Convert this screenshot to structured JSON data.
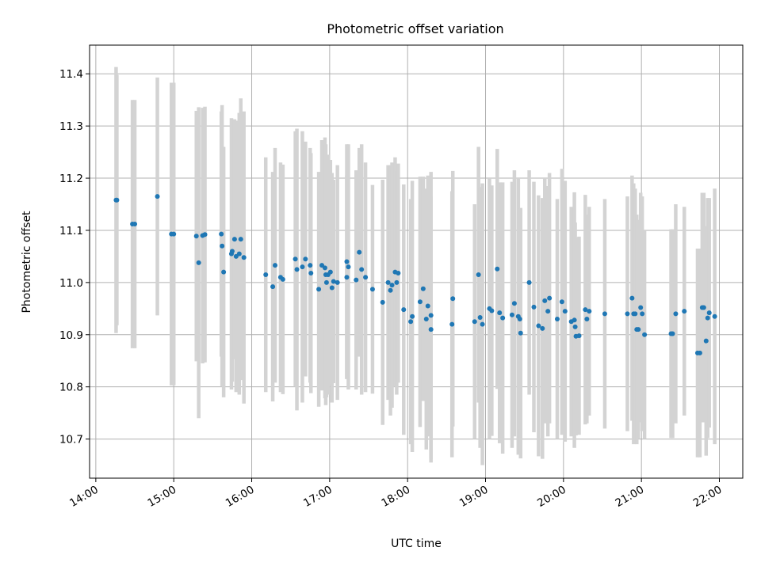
{
  "chart_data": {
    "type": "scatter",
    "title": "Photometric offset variation",
    "xlabel": "UTC time",
    "ylabel": "Photometric offset",
    "x_unit": "hours UTC",
    "xlim": [
      13.92,
      22.3
    ],
    "ylim": [
      10.625,
      11.455
    ],
    "x_ticks": [
      {
        "value": 14,
        "label": "14:00"
      },
      {
        "value": 15,
        "label": "15:00"
      },
      {
        "value": 16,
        "label": "16:00"
      },
      {
        "value": 17,
        "label": "17:00"
      },
      {
        "value": 18,
        "label": "18:00"
      },
      {
        "value": 19,
        "label": "19:00"
      },
      {
        "value": 20,
        "label": "20:00"
      },
      {
        "value": 21,
        "label": "21:00"
      },
      {
        "value": 22,
        "label": "22:00"
      }
    ],
    "y_ticks": [
      {
        "value": 10.7,
        "label": "10.7"
      },
      {
        "value": 10.8,
        "label": "10.8"
      },
      {
        "value": 10.9,
        "label": "10.9"
      },
      {
        "value": 11.0,
        "label": "11.0"
      },
      {
        "value": 11.1,
        "label": "11.1"
      },
      {
        "value": 11.2,
        "label": "11.2"
      },
      {
        "value": 11.3,
        "label": "11.3"
      },
      {
        "value": 11.4,
        "label": "11.4"
      }
    ],
    "grid": true,
    "marker_color": "#1f77b4",
    "errorbar_color": "#d3d3d3",
    "points": [
      [
        14.26,
        11.158,
        0.255
      ],
      [
        14.27,
        11.158,
        0.24
      ],
      [
        14.47,
        11.112,
        0.238
      ],
      [
        14.5,
        11.112,
        0.238
      ],
      [
        14.79,
        11.165,
        0.228
      ],
      [
        14.97,
        11.093,
        0.29
      ],
      [
        15.0,
        11.093,
        0.29
      ],
      [
        15.29,
        11.089,
        0.24
      ],
      [
        15.32,
        11.038,
        0.298
      ],
      [
        15.37,
        11.09,
        0.245
      ],
      [
        15.4,
        11.092,
        0.245
      ],
      [
        15.61,
        11.093,
        0.235
      ],
      [
        15.62,
        11.07,
        0.27
      ],
      [
        15.64,
        11.02,
        0.24
      ],
      [
        15.74,
        11.055,
        0.26
      ],
      [
        15.75,
        11.06,
        0.25
      ],
      [
        15.78,
        11.083,
        0.23
      ],
      [
        15.8,
        11.05,
        0.26
      ],
      [
        15.84,
        11.055,
        0.27
      ],
      [
        15.86,
        11.083,
        0.27
      ],
      [
        15.9,
        11.048,
        0.28
      ],
      [
        16.18,
        11.015,
        0.225
      ],
      [
        16.27,
        10.992,
        0.22
      ],
      [
        16.3,
        11.033,
        0.225
      ],
      [
        16.37,
        11.01,
        0.22
      ],
      [
        16.4,
        11.006,
        0.22
      ],
      [
        16.56,
        11.045,
        0.245
      ],
      [
        16.58,
        11.025,
        0.27
      ],
      [
        16.65,
        11.03,
        0.26
      ],
      [
        16.69,
        11.045,
        0.225
      ],
      [
        16.75,
        11.033,
        0.225
      ],
      [
        16.76,
        11.018,
        0.23
      ],
      [
        16.86,
        10.987,
        0.225
      ],
      [
        16.9,
        11.033,
        0.24
      ],
      [
        16.94,
        11.028,
        0.25
      ],
      [
        16.95,
        11.015,
        0.25
      ],
      [
        16.96,
        11.0,
        0.22
      ],
      [
        16.98,
        11.015,
        0.23
      ],
      [
        17.01,
        11.02,
        0.215
      ],
      [
        17.03,
        10.99,
        0.22
      ],
      [
        17.05,
        11.002,
        0.195
      ],
      [
        17.1,
        11.0,
        0.225
      ],
      [
        17.22,
        11.04,
        0.225
      ],
      [
        17.24,
        11.03,
        0.235
      ],
      [
        17.22,
        11.01,
        0.195
      ],
      [
        17.34,
        11.005,
        0.21
      ],
      [
        17.38,
        11.058,
        0.2
      ],
      [
        17.41,
        11.025,
        0.24
      ],
      [
        17.46,
        11.01,
        0.22
      ],
      [
        17.55,
        10.987,
        0.2
      ],
      [
        17.68,
        10.962,
        0.235
      ],
      [
        17.75,
        11.0,
        0.225
      ],
      [
        17.78,
        10.985,
        0.24
      ],
      [
        17.8,
        10.995,
        0.235
      ],
      [
        17.84,
        11.02,
        0.22
      ],
      [
        17.86,
        11.0,
        0.215
      ],
      [
        17.88,
        11.018,
        0.21
      ],
      [
        17.95,
        10.948,
        0.24
      ],
      [
        18.04,
        10.925,
        0.235
      ],
      [
        18.06,
        10.935,
        0.26
      ],
      [
        18.16,
        10.963,
        0.24
      ],
      [
        18.2,
        10.988,
        0.215
      ],
      [
        18.24,
        10.93,
        0.25
      ],
      [
        18.26,
        10.955,
        0.25
      ],
      [
        18.3,
        10.91,
        0.255
      ],
      [
        18.3,
        10.937,
        0.275
      ],
      [
        18.58,
        10.969,
        0.245
      ],
      [
        18.57,
        10.92,
        0.255
      ],
      [
        18.86,
        10.925,
        0.225
      ],
      [
        18.91,
        11.015,
        0.245
      ],
      [
        18.93,
        10.933,
        0.25
      ],
      [
        18.96,
        10.92,
        0.27
      ],
      [
        19.05,
        10.95,
        0.25
      ],
      [
        19.08,
        10.946,
        0.24
      ],
      [
        19.15,
        11.026,
        0.23
      ],
      [
        19.18,
        10.942,
        0.25
      ],
      [
        19.22,
        10.932,
        0.26
      ],
      [
        19.34,
        10.938,
        0.255
      ],
      [
        19.37,
        10.96,
        0.255
      ],
      [
        19.42,
        10.935,
        0.265
      ],
      [
        19.45,
        10.903,
        0.24
      ],
      [
        19.44,
        10.93,
        0.21
      ],
      [
        19.56,
        11.0,
        0.215
      ],
      [
        19.62,
        10.953,
        0.24
      ],
      [
        19.68,
        10.917,
        0.25
      ],
      [
        19.73,
        10.912,
        0.25
      ],
      [
        19.76,
        10.965,
        0.235
      ],
      [
        19.8,
        10.945,
        0.24
      ],
      [
        19.82,
        10.97,
        0.24
      ],
      [
        19.92,
        10.93,
        0.23
      ],
      [
        19.98,
        10.963,
        0.255
      ],
      [
        20.02,
        10.945,
        0.25
      ],
      [
        20.1,
        10.925,
        0.22
      ],
      [
        20.14,
        10.928,
        0.245
      ],
      [
        20.15,
        10.915,
        0.2
      ],
      [
        20.16,
        10.897,
        0.19
      ],
      [
        20.2,
        10.898,
        0.19
      ],
      [
        20.28,
        10.948,
        0.22
      ],
      [
        20.3,
        10.93,
        0.2
      ],
      [
        20.33,
        10.945,
        0.2
      ],
      [
        20.53,
        10.94,
        0.22
      ],
      [
        20.82,
        10.94,
        0.225
      ],
      [
        20.88,
        10.97,
        0.235
      ],
      [
        20.9,
        10.94,
        0.25
      ],
      [
        20.92,
        10.94,
        0.24
      ],
      [
        20.94,
        10.91,
        0.22
      ],
      [
        20.96,
        10.91,
        0.21
      ],
      [
        20.99,
        10.952,
        0.22
      ],
      [
        21.01,
        10.94,
        0.225
      ],
      [
        21.04,
        10.9,
        0.2
      ],
      [
        21.38,
        10.902,
        0.2
      ],
      [
        21.44,
        10.94,
        0.21
      ],
      [
        21.4,
        10.902,
        0.2
      ],
      [
        21.55,
        10.945,
        0.2
      ],
      [
        21.72,
        10.865,
        0.2
      ],
      [
        21.75,
        10.865,
        0.2
      ],
      [
        21.78,
        10.952,
        0.22
      ],
      [
        21.8,
        10.952,
        0.22
      ],
      [
        21.83,
        10.888,
        0.22
      ],
      [
        21.85,
        10.932,
        0.23
      ],
      [
        21.87,
        10.942,
        0.22
      ],
      [
        21.94,
        10.935,
        0.245
      ]
    ]
  }
}
